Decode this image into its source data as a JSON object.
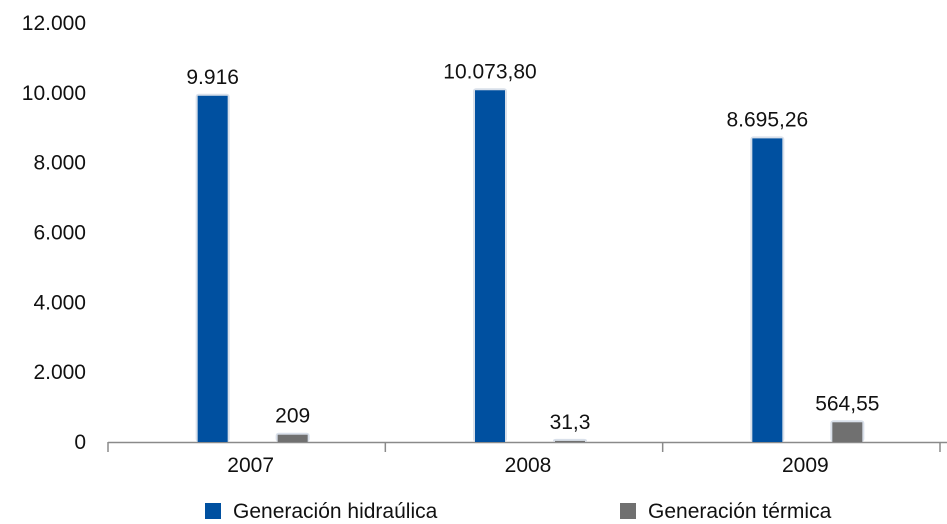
{
  "chart_data": {
    "type": "bar",
    "categories": [
      "2007",
      "2008",
      "2009"
    ],
    "series": [
      {
        "name": "Generación hidraúlica",
        "color": "#0050A0",
        "values": [
          9916,
          10073.8,
          8695.26
        ],
        "labels": [
          "9.916",
          "10.073,80",
          "8.695,26"
        ]
      },
      {
        "name": "Generación térmica",
        "color": "#707070",
        "values": [
          209,
          31.3,
          564.55
        ],
        "labels": [
          "209",
          "31,3",
          "564,55"
        ]
      }
    ],
    "yticks": [
      {
        "value": 0,
        "label": "0"
      },
      {
        "value": 2000,
        "label": "2.000"
      },
      {
        "value": 4000,
        "label": "4.000"
      },
      {
        "value": 6000,
        "label": "6.000"
      },
      {
        "value": 8000,
        "label": "8.000"
      },
      {
        "value": 10000,
        "label": "10.000"
      },
      {
        "value": 12000,
        "label": "12.000"
      }
    ],
    "ylim": [
      0,
      12000
    ],
    "grid": false,
    "legend_position": "bottom",
    "title": "",
    "xlabel": "",
    "ylabel": ""
  }
}
